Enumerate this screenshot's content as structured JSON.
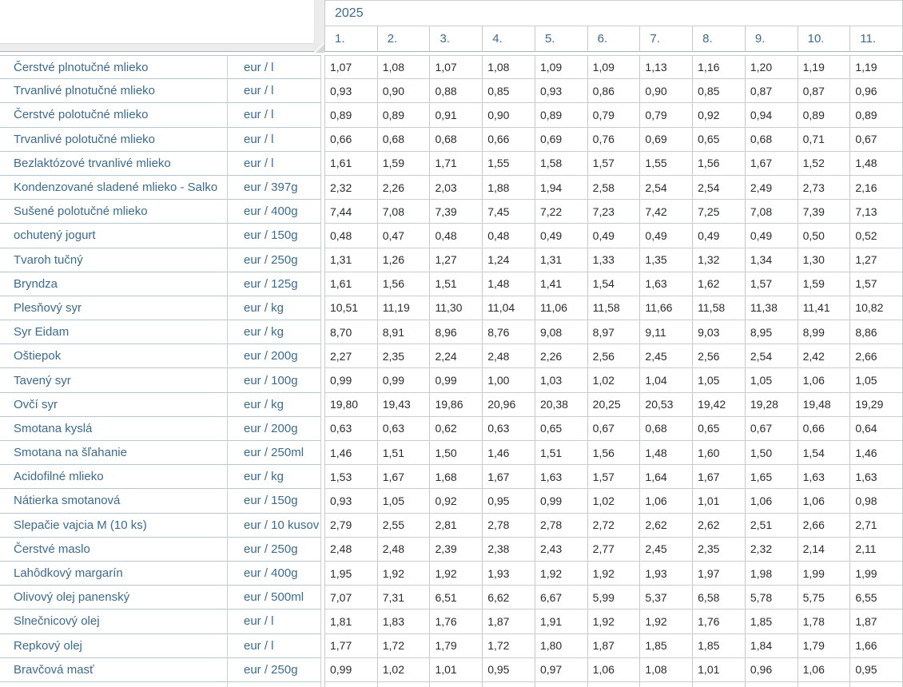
{
  "table": {
    "year": "2025",
    "months": [
      "1.",
      "2.",
      "3.",
      "4.",
      "5.",
      "6.",
      "7.",
      "8.",
      "9.",
      "10.",
      "11."
    ],
    "rows": [
      {
        "product": "Čerstvé plnotučné mlieko",
        "unit": "eur / l",
        "values": [
          "1,07",
          "1,08",
          "1,07",
          "1,08",
          "1,09",
          "1,09",
          "1,13",
          "1,16",
          "1,20",
          "1,19",
          "1,19"
        ]
      },
      {
        "product": "Trvanlivé plnotučné mlieko",
        "unit": "eur / l",
        "values": [
          "0,93",
          "0,90",
          "0,88",
          "0,85",
          "0,93",
          "0,86",
          "0,90",
          "0,85",
          "0,87",
          "0,87",
          "0,96"
        ]
      },
      {
        "product": "Čerstvé polotučné mlieko",
        "unit": "eur / l",
        "values": [
          "0,89",
          "0,89",
          "0,91",
          "0,90",
          "0,89",
          "0,79",
          "0,79",
          "0,92",
          "0,94",
          "0,89",
          "0,89"
        ]
      },
      {
        "product": "Trvanlivé polotučné mlieko",
        "unit": "eur / l",
        "values": [
          "0,66",
          "0,68",
          "0,68",
          "0,66",
          "0,69",
          "0,76",
          "0,69",
          "0,65",
          "0,68",
          "0,71",
          "0,67"
        ]
      },
      {
        "product": "Bezlaktózové trvanlivé mlieko",
        "unit": "eur / l",
        "values": [
          "1,61",
          "1,59",
          "1,71",
          "1,55",
          "1,58",
          "1,57",
          "1,55",
          "1,56",
          "1,67",
          "1,52",
          "1,48"
        ]
      },
      {
        "product": "Kondenzované sladené mlieko - Salko",
        "unit": "eur / 397g",
        "values": [
          "2,32",
          "2,26",
          "2,03",
          "1,88",
          "1,94",
          "2,58",
          "2,54",
          "2,54",
          "2,49",
          "2,73",
          "2,16"
        ]
      },
      {
        "product": "Sušené polotučné mlieko",
        "unit": "eur / 400g",
        "values": [
          "7,44",
          "7,08",
          "7,39",
          "7,45",
          "7,22",
          "7,23",
          "7,42",
          "7,25",
          "7,08",
          "7,39",
          "7,13"
        ]
      },
      {
        "product": "ochutený jogurt",
        "unit": "eur / 150g",
        "values": [
          "0,48",
          "0,47",
          "0,48",
          "0,48",
          "0,49",
          "0,49",
          "0,49",
          "0,49",
          "0,49",
          "0,50",
          "0,52"
        ]
      },
      {
        "product": "Tvaroh tučný",
        "unit": "eur / 250g",
        "values": [
          "1,31",
          "1,26",
          "1,27",
          "1,24",
          "1,31",
          "1,33",
          "1,35",
          "1,32",
          "1,34",
          "1,30",
          "1,27"
        ]
      },
      {
        "product": "Bryndza",
        "unit": "eur / 125g",
        "values": [
          "1,61",
          "1,56",
          "1,51",
          "1,48",
          "1,41",
          "1,54",
          "1,63",
          "1,62",
          "1,57",
          "1,59",
          "1,57"
        ]
      },
      {
        "product": "Plesňový syr",
        "unit": "eur / kg",
        "values": [
          "10,51",
          "11,19",
          "11,30",
          "11,04",
          "11,06",
          "11,58",
          "11,66",
          "11,58",
          "11,38",
          "11,41",
          "10,82"
        ]
      },
      {
        "product": "Syr Eidam",
        "unit": "eur / kg",
        "values": [
          "8,70",
          "8,91",
          "8,96",
          "8,76",
          "9,08",
          "8,97",
          "9,11",
          "9,03",
          "8,95",
          "8,99",
          "8,86"
        ]
      },
      {
        "product": "Oštiepok",
        "unit": "eur / 200g",
        "values": [
          "2,27",
          "2,35",
          "2,24",
          "2,48",
          "2,26",
          "2,56",
          "2,45",
          "2,56",
          "2,54",
          "2,42",
          "2,66"
        ]
      },
      {
        "product": "Tavený syr",
        "unit": "eur / 100g",
        "values": [
          "0,99",
          "0,99",
          "0,99",
          "1,00",
          "1,03",
          "1,02",
          "1,04",
          "1,05",
          "1,05",
          "1,06",
          "1,05"
        ]
      },
      {
        "product": "Ovčí syr",
        "unit": "eur / kg",
        "values": [
          "19,80",
          "19,43",
          "19,86",
          "20,96",
          "20,38",
          "20,25",
          "20,53",
          "19,42",
          "19,28",
          "19,48",
          "19,29"
        ]
      },
      {
        "product": "Smotana kyslá",
        "unit": "eur / 200g",
        "values": [
          "0,63",
          "0,63",
          "0,62",
          "0,63",
          "0,65",
          "0,67",
          "0,68",
          "0,65",
          "0,67",
          "0,66",
          "0,64"
        ]
      },
      {
        "product": "Smotana na šľahanie",
        "unit": "eur / 250ml",
        "values": [
          "1,46",
          "1,51",
          "1,50",
          "1,46",
          "1,51",
          "1,56",
          "1,48",
          "1,60",
          "1,50",
          "1,54",
          "1,46"
        ]
      },
      {
        "product": "Acidofilné mlieko",
        "unit": "eur / kg",
        "values": [
          "1,53",
          "1,67",
          "1,68",
          "1,67",
          "1,63",
          "1,57",
          "1,64",
          "1,67",
          "1,65",
          "1,63",
          "1,63"
        ]
      },
      {
        "product": "Nátierka smotanová",
        "unit": "eur / 150g",
        "values": [
          "0,93",
          "1,05",
          "0,92",
          "0,95",
          "0,99",
          "1,02",
          "1,06",
          "1,01",
          "1,06",
          "1,06",
          "0,98"
        ]
      },
      {
        "product": "Slepačie vajcia M (10 ks)",
        "unit": "eur / 10 kusov",
        "values": [
          "2,79",
          "2,55",
          "2,81",
          "2,78",
          "2,78",
          "2,72",
          "2,62",
          "2,62",
          "2,51",
          "2,66",
          "2,71"
        ]
      },
      {
        "product": "Čerstvé maslo",
        "unit": "eur / 250g",
        "values": [
          "2,48",
          "2,48",
          "2,39",
          "2,38",
          "2,43",
          "2,77",
          "2,45",
          "2,35",
          "2,32",
          "2,14",
          "2,11"
        ]
      },
      {
        "product": "Lahôdkový margarín",
        "unit": "eur / 400g",
        "values": [
          "1,95",
          "1,92",
          "1,92",
          "1,93",
          "1,92",
          "1,92",
          "1,93",
          "1,97",
          "1,98",
          "1,99",
          "1,99"
        ]
      },
      {
        "product": "Olivový olej panenský",
        "unit": "eur / 500ml",
        "values": [
          "7,07",
          "7,31",
          "6,51",
          "6,62",
          "6,67",
          "5,99",
          "5,37",
          "6,58",
          "5,78",
          "5,75",
          "6,55"
        ]
      },
      {
        "product": "Slnečnicový olej",
        "unit": "eur / l",
        "values": [
          "1,81",
          "1,83",
          "1,76",
          "1,87",
          "1,91",
          "1,92",
          "1,92",
          "1,76",
          "1,85",
          "1,78",
          "1,87"
        ]
      },
      {
        "product": "Repkový olej",
        "unit": "eur / l",
        "values": [
          "1,77",
          "1,72",
          "1,79",
          "1,72",
          "1,80",
          "1,87",
          "1,85",
          "1,85",
          "1,84",
          "1,79",
          "1,66"
        ]
      },
      {
        "product": "Bravčová masť",
        "unit": "eur / 250g",
        "values": [
          "0,99",
          "1,02",
          "1,01",
          "0,95",
          "0,97",
          "1,06",
          "1,08",
          "1,01",
          "0,96",
          "1,06",
          "0,95"
        ]
      }
    ]
  },
  "colors": {
    "accent_text": "#3c6b8e",
    "value_text": "#2b2b2b",
    "pane_border": "#b9c7d2",
    "grid_border": "#c4cacf",
    "bevel_fill": "#ececec"
  }
}
